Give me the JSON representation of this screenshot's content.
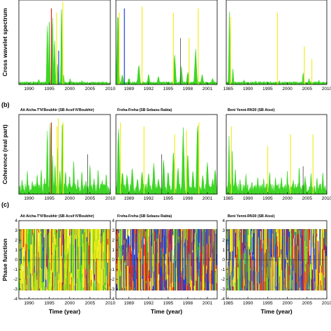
{
  "section_labels": [
    "(b)",
    "(c)"
  ],
  "row_ylabels": [
    "Cross wavelet spectrum",
    "Coherence (real part)",
    "Phase function"
  ],
  "x_axis_label": "Time (year)",
  "colors": {
    "green": "#3ed626",
    "yellow": "#f4ec1a",
    "red": "#e3201c",
    "blue": "#1f3fd6",
    "dark": "#444444"
  },
  "chart_data": [
    {
      "type": "area",
      "row": 1,
      "col": 1,
      "title": "",
      "xlim": [
        1987.5,
        2010
      ],
      "ylim": [
        0,
        1
      ],
      "xticks": [
        "1990",
        "1995",
        "2000",
        "2005",
        "2010"
      ],
      "yticks": [],
      "xlabel": "",
      "ylabel": "Cross wavelet spectrum",
      "spikes": [
        [
          1992.4,
          0.07
        ],
        [
          1994.5,
          0.8
        ],
        [
          1995.0,
          0.85
        ],
        [
          1995.8,
          0.9
        ],
        [
          1996.3,
          0.6
        ],
        [
          1997.0,
          0.25
        ],
        [
          1998.0,
          0.97
        ],
        [
          1998.5,
          0.12
        ],
        [
          2000.1,
          0.08
        ],
        [
          2003.0,
          0.05
        ],
        [
          2006.0,
          0.03
        ]
      ],
      "overlays": [
        [
          1995.5,
          0.9,
          "red"
        ],
        [
          1996.8,
          0.85,
          "yellow"
        ],
        [
          1997.3,
          0.4,
          "blue"
        ],
        [
          1998.3,
          0.98,
          "yellow"
        ]
      ]
    },
    {
      "type": "area",
      "row": 1,
      "col": 2,
      "title": "",
      "xlim": [
        1987,
        2002.5
      ],
      "ylim": [
        0,
        1
      ],
      "xticks": [
        "1989",
        "1992",
        "1995",
        "1998",
        "2001"
      ],
      "yticks": [],
      "xlabel": "",
      "ylabel": "",
      "spikes": [
        [
          1987.3,
          0.9
        ],
        [
          1988.0,
          0.12
        ],
        [
          1989.0,
          0.08
        ],
        [
          1990.5,
          0.25
        ],
        [
          1992.0,
          0.12
        ],
        [
          1993.5,
          0.1
        ],
        [
          1996.0,
          0.35
        ],
        [
          1997.0,
          0.22
        ],
        [
          1998.0,
          0.15
        ],
        [
          1999.2,
          0.45
        ],
        [
          2000.2,
          0.12
        ],
        [
          2001.8,
          0.08
        ]
      ],
      "overlays": [
        [
          1987.5,
          0.85,
          "yellow"
        ],
        [
          1988.3,
          0.9,
          "blue"
        ],
        [
          1991.0,
          0.92,
          "yellow"
        ],
        [
          1995.8,
          0.85,
          "yellow"
        ],
        [
          1996.9,
          0.55,
          "dark"
        ],
        [
          1998.2,
          0.55,
          "yellow"
        ],
        [
          1999.6,
          0.9,
          "yellow"
        ]
      ]
    },
    {
      "type": "area",
      "row": 1,
      "col": 3,
      "title": "",
      "xlim": [
        1984.5,
        2010
      ],
      "ylim": [
        0,
        1
      ],
      "xticks": [
        "1985",
        "1990",
        "1995",
        "2000",
        "2005",
        "2010"
      ],
      "yticks": [],
      "xlabel": "",
      "ylabel": "",
      "spikes": [
        [
          1985.3,
          0.95
        ],
        [
          1986.2,
          0.2
        ],
        [
          1989.0,
          0.06
        ],
        [
          1992.0,
          0.05
        ],
        [
          1995.0,
          0.04
        ],
        [
          1998.0,
          0.05
        ],
        [
          2004.0,
          0.15
        ],
        [
          2005.5,
          0.08
        ],
        [
          2008.0,
          0.06
        ]
      ],
      "overlays": [
        [
          1985.6,
          0.8,
          "yellow"
        ],
        [
          1997.5,
          0.85,
          "yellow"
        ],
        [
          2004.3,
          0.45,
          "yellow"
        ],
        [
          2006.2,
          0.3,
          "yellow"
        ]
      ]
    },
    {
      "type": "area",
      "row": 2,
      "col": 1,
      "title": "Ait Aicha-T'N'Boubhir (SB Acsif N'Boubhir)",
      "xlim": [
        1987.5,
        2010
      ],
      "ylim": [
        0,
        1
      ],
      "xticks": [
        "1990",
        "1995",
        "2000",
        "2005",
        "2010"
      ],
      "yticks": [],
      "xlabel": "",
      "ylabel": "Coherence (real part)",
      "spikes": [
        [
          1988.3,
          0.2
        ],
        [
          1989.6,
          0.3
        ],
        [
          1990.8,
          0.18
        ],
        [
          1992.0,
          0.28
        ],
        [
          1993.0,
          0.35
        ],
        [
          1993.8,
          0.22
        ],
        [
          1994.5,
          0.85
        ],
        [
          1995.2,
          0.95
        ],
        [
          1995.8,
          0.5
        ],
        [
          1996.4,
          0.4
        ],
        [
          1997.0,
          0.6
        ],
        [
          1997.6,
          0.35
        ],
        [
          1998.2,
          0.98
        ],
        [
          1999.0,
          0.3
        ],
        [
          2000.0,
          0.25
        ],
        [
          2001.0,
          0.45
        ],
        [
          2002.0,
          0.2
        ],
        [
          2003.0,
          0.3
        ],
        [
          2004.0,
          0.18
        ],
        [
          2005.0,
          0.38
        ],
        [
          2006.0,
          0.2
        ],
        [
          2007.0,
          0.32
        ],
        [
          2008.0,
          0.2
        ],
        [
          2009.0,
          0.28
        ]
      ],
      "overlays": [
        [
          1995.5,
          0.9,
          "red"
        ],
        [
          1996.9,
          0.85,
          "yellow"
        ],
        [
          1997.2,
          0.95,
          "yellow"
        ],
        [
          1998.4,
          0.9,
          "yellow"
        ],
        [
          2004.4,
          0.5,
          "dark"
        ]
      ]
    },
    {
      "type": "area",
      "row": 2,
      "col": 2,
      "title": "Freha-Freha (SB Sebaou Rabta)",
      "xlim": [
        1987,
        2002.5
      ],
      "ylim": [
        0,
        1
      ],
      "xticks": [
        "1989",
        "1992",
        "1995",
        "1998",
        "2001"
      ],
      "yticks": [],
      "xlabel": "",
      "ylabel": "",
      "spikes": [
        [
          1987.4,
          0.9
        ],
        [
          1988.0,
          0.3
        ],
        [
          1988.7,
          0.25
        ],
        [
          1989.5,
          0.35
        ],
        [
          1990.3,
          0.2
        ],
        [
          1991.0,
          0.3
        ],
        [
          1992.0,
          0.28
        ],
        [
          1992.8,
          0.4
        ],
        [
          1993.5,
          0.2
        ],
        [
          1994.3,
          0.45
        ],
        [
          1995.0,
          0.3
        ],
        [
          1995.8,
          0.55
        ],
        [
          1996.5,
          0.35
        ],
        [
          1997.3,
          0.85
        ],
        [
          1998.0,
          0.5
        ],
        [
          1998.8,
          0.3
        ],
        [
          1999.5,
          0.95
        ],
        [
          2000.3,
          0.25
        ],
        [
          2001.0,
          0.4
        ],
        [
          2001.8,
          0.2
        ],
        [
          2002.2,
          0.35
        ]
      ],
      "overlays": [
        [
          1987.7,
          0.9,
          "yellow"
        ],
        [
          1991.3,
          0.85,
          "yellow"
        ],
        [
          1994.0,
          0.5,
          "dark"
        ],
        [
          1996.0,
          0.75,
          "yellow"
        ],
        [
          1997.8,
          0.8,
          "yellow"
        ],
        [
          1999.7,
          0.9,
          "yellow"
        ]
      ]
    },
    {
      "type": "area",
      "row": 2,
      "col": 3,
      "title": "Beni Yenni-RN30 (SB Aissi)",
      "xlim": [
        1984.5,
        2010
      ],
      "ylim": [
        0,
        1
      ],
      "xticks": [
        "1985",
        "1990",
        "1995",
        "2000",
        "2005",
        "2010"
      ],
      "yticks": [],
      "xlabel": "",
      "ylabel": "",
      "spikes": [
        [
          1985.2,
          0.75
        ],
        [
          1986.0,
          0.6
        ],
        [
          1986.8,
          0.35
        ],
        [
          1988.0,
          0.2
        ],
        [
          1989.5,
          0.28
        ],
        [
          1991.0,
          0.18
        ],
        [
          1992.5,
          0.25
        ],
        [
          1994.0,
          0.2
        ],
        [
          1995.5,
          0.3
        ],
        [
          1997.0,
          0.22
        ],
        [
          1998.5,
          0.25
        ],
        [
          2000.0,
          0.3
        ],
        [
          2001.5,
          0.2
        ],
        [
          2003.0,
          0.35
        ],
        [
          2004.5,
          0.25
        ],
        [
          2006.0,
          0.3
        ],
        [
          2007.5,
          0.22
        ],
        [
          2009.0,
          0.3
        ]
      ],
      "overlays": [
        [
          1985.8,
          0.85,
          "yellow"
        ],
        [
          1995.0,
          0.6,
          "yellow"
        ],
        [
          2000.8,
          0.75,
          "yellow"
        ],
        [
          2004.0,
          0.35,
          "dark"
        ],
        [
          2006.5,
          0.75,
          "yellow"
        ]
      ]
    },
    {
      "type": "line",
      "row": 3,
      "col": 1,
      "title": "Ait Aicha-T'N'Boubhir (SB Acsif N'Boubhir)",
      "xlim": [
        1987.5,
        2010
      ],
      "ylim": [
        -4,
        4
      ],
      "xticks": [
        "1990",
        "1995",
        "2000",
        "2005",
        "2010"
      ],
      "yticks": [
        "-4",
        "-3",
        "-2",
        "-1",
        "0",
        "1",
        "2",
        "3",
        "4"
      ],
      "xlabel": "Time (year)",
      "ylabel": "Phase function",
      "band_ylim": [
        -3.14,
        3.14
      ],
      "mix": [
        "yellow",
        "green",
        "yellow",
        "red",
        "yellow",
        "blue",
        "green",
        "yellow"
      ]
    },
    {
      "type": "line",
      "row": 3,
      "col": 2,
      "title": "Freha-Freha (SB Sebaou Rabta)",
      "xlim": [
        1987,
        2002.5
      ],
      "ylim": [
        -4,
        4
      ],
      "xticks": [
        "1989",
        "1992",
        "1995",
        "1998",
        "2001"
      ],
      "yticks": [
        "-4",
        "-3",
        "-2",
        "-1",
        "0",
        "1",
        "2",
        "3",
        "4"
      ],
      "xlabel": "Time (year)",
      "ylabel": "",
      "band_ylim": [
        -3.14,
        3.14
      ],
      "mix": [
        "red",
        "yellow",
        "blue",
        "green",
        "red",
        "yellow",
        "blue"
      ]
    },
    {
      "type": "line",
      "row": 3,
      "col": 3,
      "title": "Beni Yenni-RN30 (SB Aissi)",
      "xlim": [
        1984.5,
        2010
      ],
      "ylim": [
        -4,
        4
      ],
      "xticks": [
        "1985",
        "1990",
        "1995",
        "2000",
        "2005",
        "2010"
      ],
      "yticks": [
        "-4",
        "-3",
        "-2",
        "-1",
        "0",
        "1",
        "2",
        "3",
        "4"
      ],
      "xlabel": "Time (year)",
      "ylabel": "",
      "band_ylim": [
        -3.14,
        3.14
      ],
      "mix": [
        "yellow",
        "red",
        "blue",
        "green",
        "yellow",
        "red",
        "blue"
      ]
    }
  ]
}
